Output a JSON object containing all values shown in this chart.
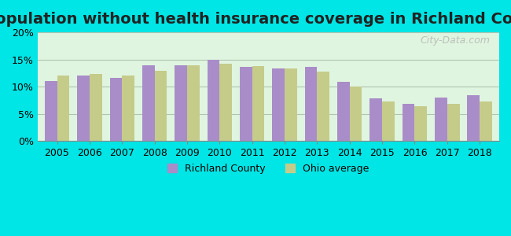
{
  "title": "Population without health insurance coverage in Richland County",
  "years": [
    2005,
    2006,
    2007,
    2008,
    2009,
    2010,
    2011,
    2012,
    2013,
    2014,
    2015,
    2016,
    2017,
    2018
  ],
  "richland": [
    11.1,
    12.0,
    11.7,
    14.0,
    14.0,
    15.0,
    13.7,
    13.3,
    13.7,
    10.9,
    7.9,
    6.8,
    8.0,
    8.5
  ],
  "ohio": [
    12.0,
    12.3,
    12.0,
    13.0,
    13.9,
    14.3,
    13.8,
    13.4,
    12.8,
    10.0,
    7.3,
    6.5,
    6.9,
    7.3
  ],
  "richland_color": "#a98dc8",
  "ohio_color": "#c5cc8a",
  "background_color": "#e0f5e0",
  "outer_background": "#00e5e5",
  "grid_color": "#b0c4b0",
  "ylim": [
    0,
    20
  ],
  "yticks": [
    0,
    5,
    10,
    15,
    20
  ],
  "ytick_labels": [
    "0%",
    "5%",
    "10%",
    "15%",
    "20%"
  ],
  "legend_richland": "Richland County",
  "legend_ohio": "Ohio average",
  "title_fontsize": 14,
  "tick_fontsize": 9,
  "watermark_text": "City-Data.com"
}
